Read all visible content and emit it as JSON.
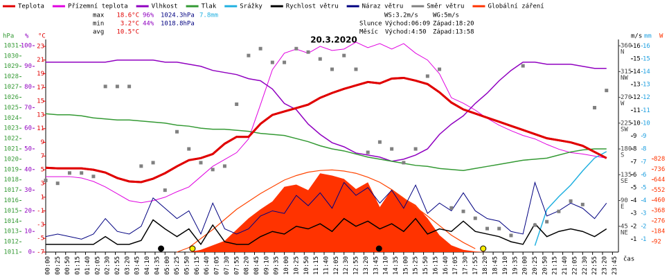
{
  "chart_data": {
    "type": "line",
    "title": "20.3.2020",
    "x_label": "čas",
    "xlim": [
      0,
      1440
    ],
    "xticks": [
      {
        "value": 0,
        "label": "00:00"
      },
      {
        "value": 25,
        "label": "00:25"
      },
      {
        "value": 50,
        "label": "00:50"
      },
      {
        "value": 75,
        "label": "01:15"
      },
      {
        "value": 100,
        "label": "01:40"
      },
      {
        "value": 125,
        "label": "02:05"
      },
      {
        "value": 150,
        "label": "02:30"
      },
      {
        "value": 175,
        "label": "02:55"
      },
      {
        "value": 200,
        "label": "03:20"
      },
      {
        "value": 225,
        "label": "03:45"
      },
      {
        "value": 250,
        "label": "04:10"
      },
      {
        "value": 275,
        "label": "04:35"
      },
      {
        "value": 300,
        "label": "05:00"
      },
      {
        "value": 325,
        "label": "05:25"
      },
      {
        "value": 350,
        "label": "05:50"
      },
      {
        "value": 375,
        "label": "06:15"
      },
      {
        "value": 400,
        "label": "06:40"
      },
      {
        "value": 425,
        "label": "07:05"
      },
      {
        "value": 450,
        "label": "07:30"
      },
      {
        "value": 475,
        "label": "07:55"
      },
      {
        "value": 500,
        "label": "08:20"
      },
      {
        "value": 525,
        "label": "08:45"
      },
      {
        "value": 550,
        "label": "09:10"
      },
      {
        "value": 575,
        "label": "09:35"
      },
      {
        "value": 600,
        "label": "10:00"
      },
      {
        "value": 625,
        "label": "10:25"
      },
      {
        "value": 650,
        "label": "10:50"
      },
      {
        "value": 675,
        "label": "11:15"
      },
      {
        "value": 700,
        "label": "11:40"
      },
      {
        "value": 725,
        "label": "12:05"
      },
      {
        "value": 750,
        "label": "12:30"
      },
      {
        "value": 775,
        "label": "12:55"
      },
      {
        "value": 800,
        "label": "13:20"
      },
      {
        "value": 825,
        "label": "13:45"
      },
      {
        "value": 850,
        "label": "14:10"
      },
      {
        "value": 875,
        "label": "14:35"
      },
      {
        "value": 900,
        "label": "15:00"
      },
      {
        "value": 925,
        "label": "15:25"
      },
      {
        "value": 950,
        "label": "15:50"
      },
      {
        "value": 975,
        "label": "16:15"
      },
      {
        "value": 1000,
        "label": "16:40"
      },
      {
        "value": 1025,
        "label": "17:05"
      },
      {
        "value": 1050,
        "label": "17:30"
      },
      {
        "value": 1075,
        "label": "17:55"
      },
      {
        "value": 1100,
        "label": "18:20"
      },
      {
        "value": 1125,
        "label": "18:45"
      },
      {
        "value": 1150,
        "label": "19:10"
      },
      {
        "value": 1175,
        "label": "19:35"
      },
      {
        "value": 1200,
        "label": "20:00"
      },
      {
        "value": 1225,
        "label": "20:25"
      },
      {
        "value": 1250,
        "label": "20:50"
      },
      {
        "value": 1275,
        "label": "21:15"
      },
      {
        "value": 1300,
        "label": "21:40"
      },
      {
        "value": 1325,
        "label": "22:05"
      },
      {
        "value": 1350,
        "label": "22:30"
      },
      {
        "value": 1375,
        "label": "22:55"
      },
      {
        "value": 1400,
        "label": "23:20"
      },
      {
        "value": 1425,
        "label": "23:45"
      }
    ],
    "y_axes": [
      {
        "unit": "hPa",
        "color": "#339933",
        "ylim": [
          1011,
          1031.6
        ],
        "yticks": [
          1011,
          1012,
          1013,
          1014,
          1015,
          1016,
          1017,
          1018,
          1019,
          1020,
          1021,
          1022,
          1023,
          1024,
          1025,
          1026,
          1027,
          1028,
          1029,
          1030,
          1031
        ]
      },
      {
        "unit": "%",
        "color": "#9000c0",
        "ylim": [
          0,
          103
        ],
        "yticks": [
          0,
          10,
          20,
          30,
          40,
          50,
          60,
          70,
          80,
          90,
          100
        ]
      },
      {
        "unit": "°C",
        "color": "#e00000",
        "ylim": [
          -7,
          24
        ],
        "yticks": [
          -7,
          -5,
          -3,
          -1,
          1,
          3,
          5,
          7,
          9,
          11,
          13,
          15,
          17,
          19,
          21,
          23
        ]
      },
      {
        "unit": "",
        "color": "#404040",
        "ylim": [
          0,
          371
        ],
        "yticks": [
          45,
          90,
          135,
          180,
          225,
          270,
          315,
          360
        ],
        "tick_names": [
          "NE",
          "E",
          "SE",
          "S",
          "SW",
          "W",
          "NW",
          "N"
        ]
      },
      {
        "unit": "m/s",
        "color": "#000000",
        "ylim": [
          0,
          16.5
        ],
        "yticks": [
          1,
          2,
          3,
          4,
          5,
          6,
          7,
          8,
          9,
          10,
          11,
          12,
          13,
          14,
          15,
          16
        ]
      },
      {
        "unit": "mm",
        "color": "#20a0e0",
        "ylim": [
          0,
          16.5
        ],
        "yticks": [
          1,
          2,
          3,
          4,
          5,
          6,
          7,
          8,
          9,
          10,
          11,
          12,
          13,
          14,
          15,
          16
        ]
      },
      {
        "unit": "W",
        "color": "#ff3300",
        "ylim": [
          0,
          1889
        ],
        "yticks": [
          92,
          184,
          276,
          368,
          460,
          552,
          644,
          736,
          828
        ]
      }
    ],
    "x": [
      0,
      30,
      60,
      90,
      120,
      150,
      180,
      210,
      240,
      270,
      300,
      330,
      360,
      390,
      420,
      450,
      480,
      510,
      540,
      570,
      600,
      630,
      660,
      690,
      720,
      750,
      780,
      810,
      840,
      870,
      900,
      930,
      960,
      990,
      1020,
      1050,
      1080,
      1110,
      1140,
      1170,
      1200,
      1230,
      1260,
      1290,
      1320,
      1350,
      1380,
      1410
    ],
    "series": [
      {
        "name": "Teplota",
        "color": "#e00000",
        "axis": 2,
        "kind": "line",
        "width": 3,
        "values": [
          5.3,
          5.2,
          5.2,
          5.2,
          5.0,
          4.6,
          3.8,
          3.3,
          3.2,
          3.7,
          4.5,
          5.5,
          6.4,
          6.7,
          7.3,
          8.8,
          9.8,
          9.8,
          11.7,
          13.0,
          13.5,
          14.0,
          14.5,
          15.5,
          16.2,
          16.8,
          17.3,
          17.8,
          17.6,
          18.3,
          18.4,
          18.0,
          17.5,
          16.3,
          14.8,
          13.8,
          13.2,
          12.6,
          12.0,
          11.4,
          10.8,
          10.2,
          9.6,
          9.3,
          9.0,
          8.5,
          7.6,
          6.7
        ]
      },
      {
        "name": "Přízemní teplota",
        "color": "#e000e0",
        "axis": 2,
        "kind": "line",
        "width": 1,
        "values": [
          4,
          4,
          4,
          3.8,
          3.3,
          2.5,
          1.5,
          0.5,
          0.2,
          0.5,
          1,
          1.8,
          2.5,
          4,
          5.5,
          6.5,
          7.5,
          9.5,
          14.5,
          19.6,
          22,
          22.6,
          22,
          23,
          22.4,
          22.6,
          23.6,
          22.8,
          23.4,
          22.6,
          23.4,
          22,
          21,
          19,
          15.5,
          14.7,
          13.7,
          12.5,
          11.5,
          10.7,
          10,
          9.5,
          8.7,
          8,
          7.5,
          7.3,
          7,
          6.7
        ]
      },
      {
        "name": "Vlhkost",
        "color": "#9000c0",
        "axis": 1,
        "kind": "line",
        "width": 1.5,
        "values": [
          92,
          92,
          92,
          92,
          92,
          92,
          93,
          93,
          93,
          93,
          92,
          92,
          91,
          90,
          88,
          87,
          86,
          84,
          83,
          79,
          72,
          69,
          62,
          57,
          53,
          51,
          48,
          47,
          46,
          44,
          45,
          47,
          50,
          57,
          62,
          66,
          72,
          77,
          83,
          88,
          92,
          92,
          91,
          91,
          91,
          90,
          89,
          89
        ]
      },
      {
        "name": "Tlak",
        "color": "#339933",
        "axis": 0,
        "kind": "line",
        "width": 1.5,
        "values": [
          1024.4,
          1024.3,
          1024.3,
          1024.2,
          1024.0,
          1023.9,
          1023.8,
          1023.8,
          1023.7,
          1023.6,
          1023.5,
          1023.3,
          1023.2,
          1023.0,
          1022.9,
          1022.9,
          1022.8,
          1022.7,
          1022.5,
          1022.4,
          1022.3,
          1022.0,
          1021.7,
          1021.3,
          1021.0,
          1020.8,
          1020.5,
          1020.2,
          1020.0,
          1019.8,
          1019.6,
          1019.4,
          1019.3,
          1019.1,
          1019.0,
          1018.9,
          1019.1,
          1019.3,
          1019.5,
          1019.7,
          1019.9,
          1020.0,
          1020.1,
          1020.4,
          1020.7,
          1020.9,
          1021.0,
          1021.0
        ]
      },
      {
        "name": "Srážky",
        "color": "#20b0e0",
        "axis": 5,
        "kind": "line",
        "width": 1.5,
        "values": [
          null,
          null,
          null,
          null,
          null,
          null,
          null,
          null,
          null,
          null,
          null,
          null,
          null,
          null,
          null,
          null,
          null,
          null,
          null,
          null,
          null,
          null,
          null,
          null,
          null,
          null,
          null,
          null,
          null,
          null,
          null,
          null,
          null,
          null,
          null,
          null,
          null,
          null,
          null,
          null,
          null,
          0.5,
          3.3,
          4.3,
          5.2,
          6.3,
          7.3,
          7.8
        ]
      },
      {
        "name": "Rychlost větru",
        "color": "#000000",
        "axis": 4,
        "kind": "line",
        "width": 1.5,
        "values": [
          0.6,
          0.6,
          0.6,
          0.6,
          0.6,
          1.2,
          0.6,
          0.6,
          0.9,
          2.5,
          1.8,
          1.2,
          1.8,
          0.6,
          2.1,
          0.8,
          0.6,
          0.6,
          1.2,
          1.6,
          1.4,
          2.0,
          1.8,
          2.2,
          1.6,
          2.6,
          2.0,
          2.4,
          1.8,
          2.2,
          1.6,
          2.6,
          1.4,
          1.8,
          1.6,
          2.4,
          1.6,
          1.4,
          1.2,
          0.8,
          0.6,
          2.2,
          1.2,
          1.6,
          1.8,
          1.6,
          1.2,
          1.8
        ]
      },
      {
        "name": "Náraz větru",
        "color": "#000080",
        "axis": 4,
        "kind": "line",
        "width": 1,
        "values": [
          1.2,
          1.4,
          1.2,
          1.0,
          1.4,
          2.6,
          1.6,
          1.4,
          2.0,
          4.2,
          3.4,
          2.6,
          3.2,
          1.4,
          3.8,
          1.8,
          1.4,
          1.8,
          2.8,
          3.2,
          3.0,
          4.4,
          3.6,
          4.6,
          3.4,
          5.4,
          4.4,
          5.0,
          3.8,
          4.8,
          3.4,
          5.2,
          3.0,
          3.8,
          3.2,
          4.6,
          3.2,
          2.6,
          2.4,
          1.6,
          1.4,
          5.4,
          2.8,
          3.2,
          3.8,
          3.4,
          2.6,
          3.8
        ]
      },
      {
        "name": "Směr větru",
        "color": "#808080",
        "axis": 3,
        "kind": "scatter",
        "width": 2,
        "values": [
          125,
          120,
          138,
          138,
          132,
          289,
          289,
          289,
          150,
          156,
          108,
          210,
          180,
          156,
          144,
          150,
          258,
          343,
          355,
          331,
          331,
          355,
          349,
          337,
          319,
          343,
          319,
          174,
          192,
          180,
          156,
          180,
          307,
          319,
          77,
          71,
          59,
          41,
          41,
          29,
          325,
          47,
          53,
          71,
          89,
          83,
          252,
          282
        ]
      },
      {
        "name": "Globální záření",
        "color": "#ff3300",
        "axis": 6,
        "kind": "area",
        "width": 1,
        "values": [
          0,
          0,
          0,
          0,
          0,
          0,
          0,
          0,
          0,
          0,
          0,
          0,
          0,
          20,
          60,
          100,
          200,
          300,
          380,
          450,
          580,
          600,
          550,
          700,
          680,
          650,
          560,
          620,
          400,
          560,
          480,
          420,
          300,
          150,
          60,
          20,
          5,
          0,
          0,
          0,
          0,
          0,
          0,
          0,
          0,
          0,
          0,
          0
        ]
      }
    ],
    "clear_sky": {
      "color": "#ff4400",
      "axis": 6,
      "values": [
        null,
        null,
        null,
        null,
        null,
        null,
        null,
        null,
        null,
        null,
        null,
        0,
        40,
        120,
        200,
        290,
        380,
        450,
        520,
        580,
        640,
        680,
        710,
        725,
        730,
        720,
        700,
        665,
        620,
        555,
        480,
        400,
        320,
        235,
        150,
        85,
        30,
        null,
        null,
        null,
        null,
        null,
        null,
        null,
        null,
        null,
        null,
        null
      ]
    },
    "events": [
      {
        "x": 290,
        "color": "#000000"
      },
      {
        "x": 369,
        "color": "#ffee00"
      },
      {
        "x": 838,
        "color": "#000000"
      },
      {
        "x": 1100,
        "color": "#ffee00"
      }
    ],
    "stats": [
      {
        "label": "max",
        "items": [
          "18.6°C",
          "96%",
          "1024.3hPa",
          "7.8mm"
        ]
      },
      {
        "label": "min",
        "items": [
          "3.2°C",
          "44%",
          "1018.8hPa"
        ]
      },
      {
        "label": "avg",
        "items": [
          "10.5°C"
        ]
      }
    ],
    "stat_colors": [
      "#e00000",
      "#9000c0",
      "#000080",
      "#20b0e0"
    ],
    "wind": [
      "WS:3.2m/s",
      "WG:5m/s"
    ],
    "astro": [
      {
        "label": "Slunce",
        "rise": "Východ:06:09",
        "set": "Západ:18:20"
      },
      {
        "label": "Měsíc",
        "rise": "Východ:4:50",
        "set": "Západ:13:58"
      }
    ]
  }
}
